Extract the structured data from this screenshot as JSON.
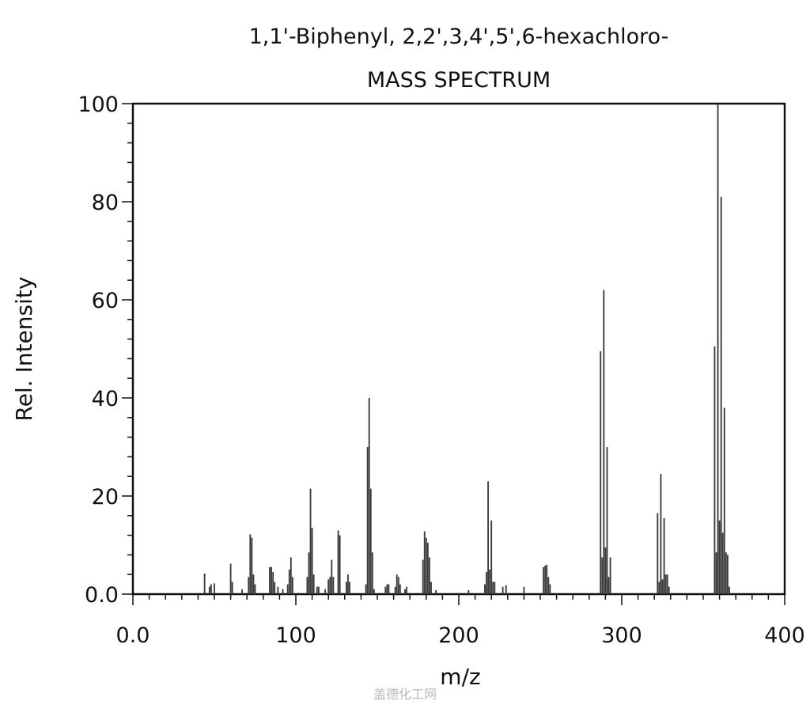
{
  "chart_data": {
    "type": "bar",
    "title": "1,1'-Biphenyl, 2,2',3,4',5',6-hexachloro-",
    "subtitle": "MASS SPECTRUM",
    "xlabel": "m/z",
    "ylabel": "Rel. Intensity",
    "xlim": [
      0,
      400
    ],
    "ylim": [
      0,
      100
    ],
    "x_ticks": [
      "0.0",
      "100",
      "200",
      "300",
      "400"
    ],
    "y_ticks": [
      "0.0",
      "20",
      "40",
      "60",
      "80",
      "100"
    ],
    "x_tick_values": [
      0,
      100,
      200,
      300,
      400
    ],
    "y_tick_values": [
      0,
      20,
      40,
      60,
      80,
      100
    ],
    "bar_color": "#3a3a3a",
    "peaks": [
      {
        "x": 44,
        "y": 4.2
      },
      {
        "x": 47,
        "y": 1.5
      },
      {
        "x": 48,
        "y": 2
      },
      {
        "x": 50,
        "y": 2.2
      },
      {
        "x": 60,
        "y": 6.2
      },
      {
        "x": 61,
        "y": 2.5
      },
      {
        "x": 67,
        "y": 1
      },
      {
        "x": 71,
        "y": 3.5
      },
      {
        "x": 72,
        "y": 12.2
      },
      {
        "x": 73,
        "y": 11.5
      },
      {
        "x": 74,
        "y": 4
      },
      {
        "x": 75,
        "y": 2
      },
      {
        "x": 84,
        "y": 5.5
      },
      {
        "x": 85,
        "y": 5.5
      },
      {
        "x": 86,
        "y": 4.5
      },
      {
        "x": 87,
        "y": 2.5
      },
      {
        "x": 89,
        "y": 1.5
      },
      {
        "x": 92,
        "y": 1
      },
      {
        "x": 95,
        "y": 2
      },
      {
        "x": 96,
        "y": 5
      },
      {
        "x": 97,
        "y": 7.5
      },
      {
        "x": 98,
        "y": 3.5
      },
      {
        "x": 107,
        "y": 3.5
      },
      {
        "x": 108,
        "y": 8.5
      },
      {
        "x": 109,
        "y": 21.5
      },
      {
        "x": 110,
        "y": 13.5
      },
      {
        "x": 111,
        "y": 4
      },
      {
        "x": 113,
        "y": 1.5
      },
      {
        "x": 114,
        "y": 1.5
      },
      {
        "x": 118,
        "y": 1
      },
      {
        "x": 120,
        "y": 3
      },
      {
        "x": 121,
        "y": 3.5
      },
      {
        "x": 122,
        "y": 7
      },
      {
        "x": 123,
        "y": 3.5
      },
      {
        "x": 126,
        "y": 13
      },
      {
        "x": 127,
        "y": 12
      },
      {
        "x": 131,
        "y": 2.5
      },
      {
        "x": 132,
        "y": 4
      },
      {
        "x": 133,
        "y": 2.5
      },
      {
        "x": 143,
        "y": 2
      },
      {
        "x": 144,
        "y": 30
      },
      {
        "x": 145,
        "y": 40
      },
      {
        "x": 146,
        "y": 21.5
      },
      {
        "x": 147,
        "y": 8.5
      },
      {
        "x": 148,
        "y": 1
      },
      {
        "x": 155,
        "y": 1.5
      },
      {
        "x": 156,
        "y": 2
      },
      {
        "x": 157,
        "y": 2
      },
      {
        "x": 161,
        "y": 1.5
      },
      {
        "x": 162,
        "y": 4
      },
      {
        "x": 163,
        "y": 3.5
      },
      {
        "x": 164,
        "y": 2
      },
      {
        "x": 167,
        "y": 1
      },
      {
        "x": 168,
        "y": 1.5
      },
      {
        "x": 178,
        "y": 7
      },
      {
        "x": 179,
        "y": 12.8
      },
      {
        "x": 180,
        "y": 11.5
      },
      {
        "x": 181,
        "y": 10.5
      },
      {
        "x": 182,
        "y": 7.5
      },
      {
        "x": 183,
        "y": 2.5
      },
      {
        "x": 186,
        "y": 0.8
      },
      {
        "x": 206,
        "y": 0.8
      },
      {
        "x": 216,
        "y": 2
      },
      {
        "x": 217,
        "y": 4.5
      },
      {
        "x": 218,
        "y": 23
      },
      {
        "x": 219,
        "y": 5
      },
      {
        "x": 220,
        "y": 15
      },
      {
        "x": 221,
        "y": 2.5
      },
      {
        "x": 222,
        "y": 2.5
      },
      {
        "x": 227,
        "y": 1.5
      },
      {
        "x": 229,
        "y": 1.8
      },
      {
        "x": 240,
        "y": 1.5
      },
      {
        "x": 252,
        "y": 5.5
      },
      {
        "x": 253,
        "y": 5.8
      },
      {
        "x": 254,
        "y": 6
      },
      {
        "x": 255,
        "y": 3.5
      },
      {
        "x": 256,
        "y": 2
      },
      {
        "x": 287,
        "y": 49.5
      },
      {
        "x": 288,
        "y": 7.5
      },
      {
        "x": 289,
        "y": 62
      },
      {
        "x": 290,
        "y": 9.5
      },
      {
        "x": 291,
        "y": 30
      },
      {
        "x": 292,
        "y": 3.5
      },
      {
        "x": 293,
        "y": 7.5
      },
      {
        "x": 322,
        "y": 16.5
      },
      {
        "x": 323,
        "y": 2.5
      },
      {
        "x": 324,
        "y": 24.5
      },
      {
        "x": 325,
        "y": 3
      },
      {
        "x": 326,
        "y": 15.5
      },
      {
        "x": 327,
        "y": 4
      },
      {
        "x": 328,
        "y": 4
      },
      {
        "x": 329,
        "y": 1.5
      },
      {
        "x": 357,
        "y": 50.5
      },
      {
        "x": 358,
        "y": 8.5
      },
      {
        "x": 359,
        "y": 100
      },
      {
        "x": 360,
        "y": 15
      },
      {
        "x": 361,
        "y": 81
      },
      {
        "x": 362,
        "y": 12.5
      },
      {
        "x": 363,
        "y": 38
      },
      {
        "x": 364,
        "y": 8.5
      },
      {
        "x": 365,
        "y": 8
      },
      {
        "x": 366,
        "y": 1.5
      }
    ]
  },
  "watermark": "盖德化工网"
}
